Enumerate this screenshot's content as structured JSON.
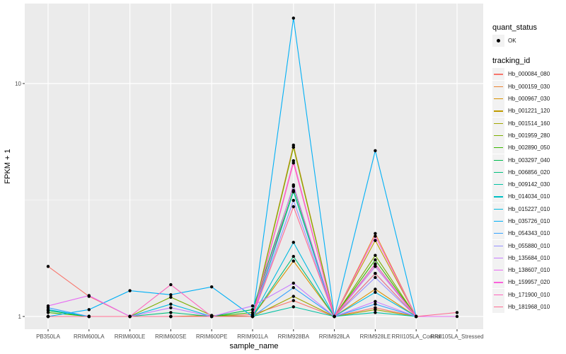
{
  "chart_data": {
    "type": "line",
    "title": "",
    "xlabel": "sample_name",
    "ylabel": "FPKM + 1",
    "yscale": "log10",
    "ylim": [
      0.92,
      22
    ],
    "yticks": [
      1,
      10
    ],
    "ytick_labels": [
      "1",
      "10"
    ],
    "grid": true,
    "legend_position": "right",
    "categories": [
      "PB350LA",
      "RRIM600LA",
      "RRIM600LE",
      "RRIM600SE",
      "RRIM600PE",
      "RRIM901LA",
      "RRIM928BA",
      "RRIM928LA",
      "RRIM928LE",
      "RRII105LA_Control",
      "RRII105LA_Stressed"
    ],
    "shape_legend": {
      "title": "quant_status",
      "entries": [
        "OK"
      ]
    },
    "color_legend_title": "tracking_id",
    "series": [
      {
        "name": "Hb_000084_080",
        "color": "#F8766D",
        "values": [
          1.64,
          1.22,
          1.0,
          1.0,
          1.0,
          1.02,
          1.17,
          1.0,
          1.09,
          1.0,
          null
        ]
      },
      {
        "name": "Hb_000159_030",
        "color": "#EA8331",
        "values": [
          1.0,
          1.0,
          1.0,
          1.0,
          1.0,
          1.0,
          5.44,
          1.0,
          2.27,
          1.0,
          null
        ]
      },
      {
        "name": "Hb_000967_030",
        "color": "#D89000",
        "values": [
          1.0,
          1.0,
          1.0,
          1.0,
          1.0,
          1.0,
          1.73,
          1.0,
          1.31,
          1.0,
          null
        ]
      },
      {
        "name": "Hb_001221_120",
        "color": "#C09B00",
        "values": [
          1.0,
          1.0,
          1.0,
          1.0,
          1.01,
          1.0,
          5.33,
          1.0,
          2.12,
          1.0,
          null
        ]
      },
      {
        "name": "Hb_001514_160",
        "color": "#A3A500",
        "values": [
          1.0,
          1.0,
          1.0,
          1.0,
          1.0,
          1.0,
          1.22,
          1.0,
          1.07,
          1.0,
          null
        ]
      },
      {
        "name": "Hb_001959_280",
        "color": "#7CAE00",
        "values": [
          1.0,
          1.0,
          1.0,
          1.21,
          1.01,
          1.0,
          5.33,
          1.0,
          1.83,
          1.0,
          null
        ]
      },
      {
        "name": "Hb_002890_050",
        "color": "#39B600",
        "values": [
          1.04,
          1.0,
          1.0,
          1.0,
          1.0,
          1.04,
          3.47,
          1.0,
          1.75,
          1.0,
          null
        ]
      },
      {
        "name": "Hb_003297_040",
        "color": "#00BB4E",
        "values": [
          1.06,
          1.0,
          1.0,
          1.0,
          1.0,
          1.07,
          3.62,
          1.0,
          1.68,
          1.0,
          null
        ]
      },
      {
        "name": "Hb_006856_020",
        "color": "#00BF7D",
        "values": [
          1.0,
          1.0,
          1.0,
          1.04,
          1.0,
          1.0,
          1.81,
          1.0,
          1.53,
          1.0,
          null
        ]
      },
      {
        "name": "Hb_009142_030",
        "color": "#00C1A3",
        "values": [
          1.0,
          1.0,
          1.0,
          1.0,
          1.0,
          1.0,
          1.1,
          1.0,
          1.04,
          1.0,
          null
        ]
      },
      {
        "name": "Hb_014034_010",
        "color": "#00BFC4",
        "values": [
          1.0,
          1.0,
          1.0,
          1.0,
          1.0,
          1.0,
          3.43,
          1.0,
          1.64,
          1.0,
          null
        ]
      },
      {
        "name": "Hb_015227_010",
        "color": "#00BAE0",
        "values": [
          1.07,
          1.0,
          1.0,
          1.13,
          1.0,
          1.0,
          2.08,
          1.0,
          1.27,
          1.0,
          null
        ]
      },
      {
        "name": "Hb_035726_010",
        "color": "#00B0F6",
        "values": [
          1.0,
          1.07,
          1.29,
          1.24,
          1.34,
          1.0,
          19.1,
          1.0,
          5.15,
          1.0,
          null
        ]
      },
      {
        "name": "Hb_054343_010",
        "color": "#35A2FF",
        "values": [
          1.09,
          1.0,
          1.0,
          1.0,
          1.0,
          1.0,
          1.33,
          1.0,
          1.13,
          1.0,
          null
        ]
      },
      {
        "name": "Hb_055880_010",
        "color": "#9590FF",
        "values": [
          1.0,
          1.0,
          1.0,
          1.0,
          1.0,
          1.0,
          3.15,
          1.0,
          1.47,
          1.0,
          null
        ]
      },
      {
        "name": "Hb_135684_010",
        "color": "#C77CFF",
        "values": [
          1.0,
          1.0,
          1.0,
          1.09,
          1.0,
          1.11,
          1.39,
          1.0,
          1.16,
          1.0,
          null
        ]
      },
      {
        "name": "Hb_138607_010",
        "color": "#E76BF3",
        "values": [
          1.11,
          1.23,
          1.0,
          1.0,
          1.0,
          1.0,
          3.67,
          1.0,
          1.64,
          1.0,
          1.0
        ]
      },
      {
        "name": "Hb_159957_020",
        "color": "#FA62DB",
        "values": [
          1.0,
          1.0,
          1.0,
          1.0,
          1.0,
          1.0,
          4.66,
          1.0,
          2.21,
          1.0,
          null
        ]
      },
      {
        "name": "Hb_171900_010",
        "color": "#FF62BC",
        "values": [
          1.0,
          1.0,
          1.0,
          1.37,
          1.0,
          1.0,
          4.56,
          1.0,
          1.68,
          1.0,
          null
        ]
      },
      {
        "name": "Hb_181968_010",
        "color": "#FF6C91",
        "values": [
          1.0,
          1.0,
          1.0,
          1.0,
          1.0,
          1.0,
          2.96,
          1.0,
          1.53,
          1.0,
          1.04
        ]
      }
    ]
  }
}
